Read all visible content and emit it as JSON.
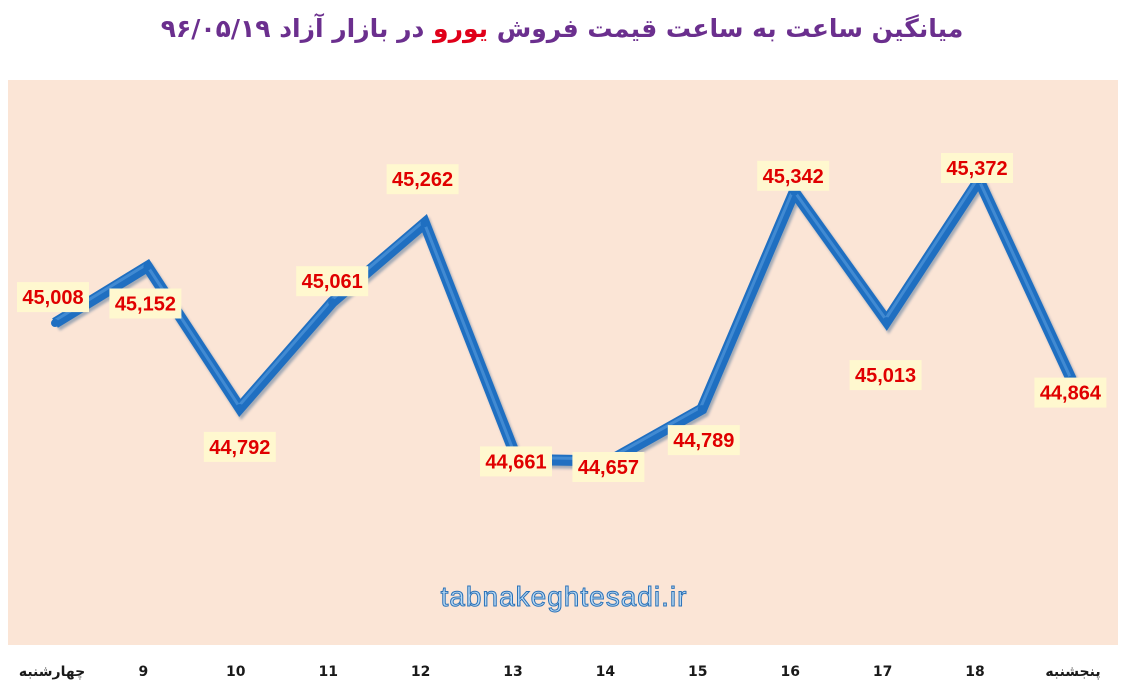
{
  "title": {
    "part1": "میانگین ساعت به ساعت قیمت فروش ",
    "highlight": "یورو",
    "part2": " در بازار آزاد ۹۶/۰۵/۱۹"
  },
  "watermark": "tabnakeghtesadi.ir",
  "colors": {
    "plot_background": "#fbe5d6",
    "line": "#1f6fc1",
    "line_highlight": "#5ca0e0",
    "data_label": "#e00000",
    "data_label_bg": "#fff8cf",
    "title": "#6b2f8e",
    "title_highlight": "#e0001a"
  },
  "chart_data": {
    "type": "line",
    "categories": [
      "چهارشنبه",
      "9",
      "10",
      "11",
      "12",
      "13",
      "14",
      "15",
      "16",
      "17",
      "18",
      "پنجشنبه"
    ],
    "values": [
      45008,
      45152,
      44792,
      45061,
      45262,
      44661,
      44657,
      44789,
      45342,
      45013,
      45372,
      44864
    ],
    "labels": [
      "45,008",
      "45,152",
      "44,792",
      "45,061",
      "45,262",
      "44,661",
      "44,657",
      "44,789",
      "45,342",
      "45,013",
      "45,372",
      "44,864"
    ],
    "grid": "vertical drop lines",
    "legend": "none"
  }
}
